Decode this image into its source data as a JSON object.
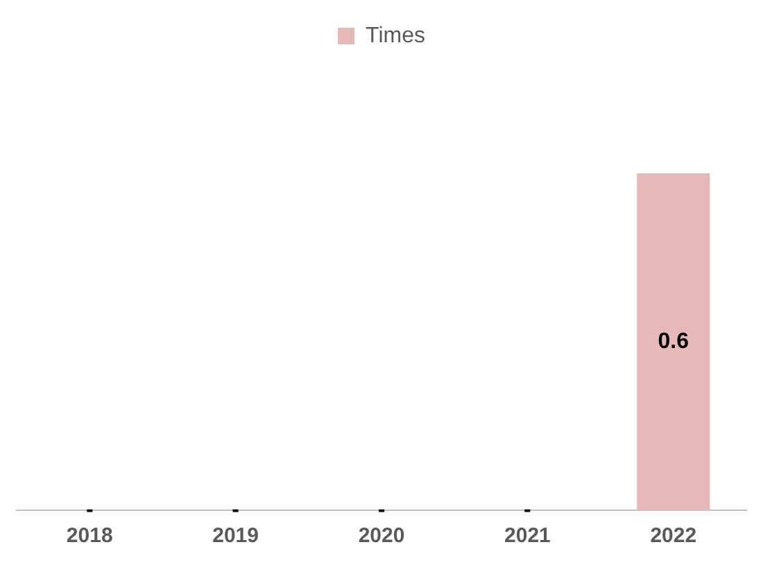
{
  "chart_data": {
    "type": "bar",
    "categories": [
      "2018",
      "2019",
      "2020",
      "2021",
      "2022"
    ],
    "series": [
      {
        "name": "Times",
        "color": "#e6b8b7",
        "values": [
          0,
          0,
          0,
          0,
          0.6
        ],
        "value_labels": [
          "-",
          "-",
          "-",
          "-",
          "0.6"
        ]
      }
    ],
    "legend": "top",
    "grid": false
  }
}
